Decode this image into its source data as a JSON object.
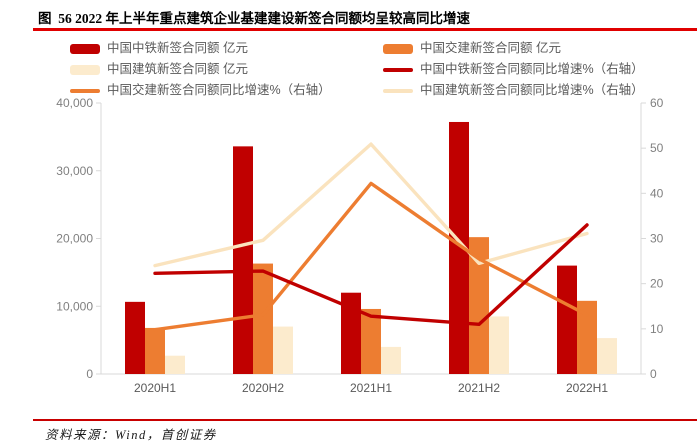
{
  "title": "图  56 2022 年上半年重点建筑企业基建建设新签合同额均呈较高同比增速",
  "source": "资料来源：Wind，首创证券",
  "colors": {
    "accent_red_rule": "#E00000",
    "dark_red": "#C00000",
    "orange": "#ED7D31",
    "cream_bar": "#FCEBCD",
    "cream_line": "#FAE3BE",
    "axis_line": "#D9D9D9",
    "tick_text": "#808080",
    "category_text": "#595959",
    "legend_text": "#595959"
  },
  "legend": {
    "items": [
      {
        "key": "zhongtie-amount",
        "swatch": "bar",
        "color": "#C00000",
        "label": "中国中铁新签合同额 亿元"
      },
      {
        "key": "jiaojian-amount",
        "swatch": "bar",
        "color": "#ED7D31",
        "label": "中国交建新签合同额 亿元"
      },
      {
        "key": "jianzhu-amount",
        "swatch": "bar",
        "color": "#FCEBCD",
        "label": "中国建筑新签合同额 亿元"
      },
      {
        "key": "zhongtie-growth",
        "swatch": "line",
        "color": "#C00000",
        "label": "中国中铁新签合同额同比增速%（右轴）"
      },
      {
        "key": "jiaojian-growth",
        "swatch": "line",
        "color": "#ED7D31",
        "label": "中国交建新签合同额同比增速%（右轴）"
      },
      {
        "key": "jianzhu-growth",
        "swatch": "line",
        "color": "#FAE3BE",
        "label": "中国建筑新签合同额同比增速%（右轴）"
      }
    ]
  },
  "chart_data": {
    "type": "bar",
    "subtype": "clustered-bar-with-lines",
    "title": "图  56 2022 年上半年重点建筑企业基建建设新签合同额均呈较高同比增速",
    "categories": [
      "2020H1",
      "2020H2",
      "2021H1",
      "2021H2",
      "2022H1"
    ],
    "series": [
      {
        "key": "zhongtie-amount",
        "name": "中国中铁新签合同额 亿元",
        "type": "bar",
        "axis": "left",
        "color": "#C00000",
        "values": [
          10650,
          33600,
          12000,
          37200,
          16000
        ]
      },
      {
        "key": "jiaojian-amount",
        "name": "中国交建新签合同额 亿元",
        "type": "bar",
        "axis": "left",
        "color": "#ED7D31",
        "values": [
          6800,
          16300,
          9600,
          20200,
          10800
        ]
      },
      {
        "key": "jianzhu-amount",
        "name": "中国建筑新签合同额 亿元",
        "type": "bar",
        "axis": "left",
        "color": "#FCEBCD",
        "values": [
          2700,
          7000,
          4000,
          8500,
          5300
        ]
      },
      {
        "key": "zhongtie-growth",
        "name": "中国中铁新签合同额同比增速%（右轴）",
        "type": "line",
        "axis": "right",
        "color": "#C00000",
        "values": [
          22.3,
          22.8,
          12.8,
          11.0,
          33.0
        ]
      },
      {
        "key": "jiaojian-growth",
        "name": "中国交建新签合同额同比增速%（右轴）",
        "type": "line",
        "axis": "right",
        "color": "#ED7D31",
        "values": [
          9.8,
          13.1,
          42.2,
          25.5,
          13.1
        ]
      },
      {
        "key": "jianzhu-growth",
        "name": "中国建筑新签合同额同比增速%（右轴）",
        "type": "line",
        "axis": "right",
        "color": "#FAE3BE",
        "values": [
          24.0,
          29.6,
          50.9,
          24.5,
          31.1
        ]
      }
    ],
    "left_axis": {
      "min": 0,
      "max": 40000,
      "tick_step": 10000,
      "tick_labels": [
        "0",
        "10,000",
        "20,000",
        "30,000",
        "40,000"
      ]
    },
    "right_axis": {
      "min": 0,
      "max": 60,
      "tick_step": 10,
      "tick_labels": [
        "0",
        "10",
        "20",
        "30",
        "40",
        "50",
        "60"
      ]
    },
    "grid": false,
    "legend_position": "top"
  }
}
